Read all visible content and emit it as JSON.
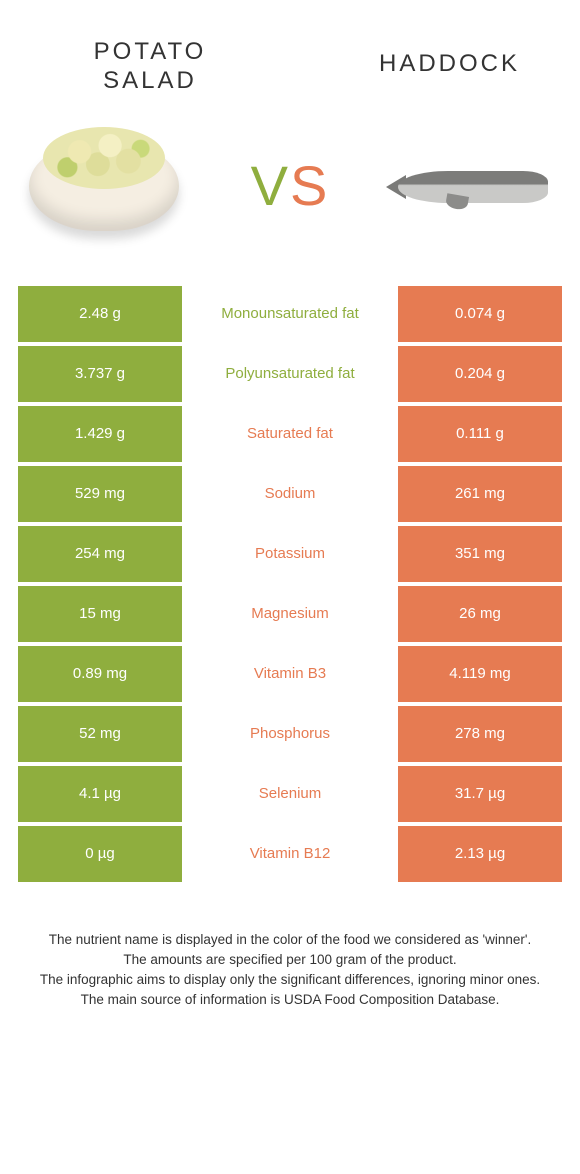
{
  "header": {
    "left_title_line1": "Potato",
    "left_title_line2": "salad",
    "right_title": "Haddock"
  },
  "vs": {
    "v": "V",
    "s": "S"
  },
  "colors": {
    "green": "#8fae3e",
    "orange": "#e67b52",
    "mid_neutral": "#888888",
    "background": "#ffffff"
  },
  "rows": [
    {
      "left": "2.48 g",
      "label": "Monounsaturated fat",
      "winner": "green",
      "right": "0.074 g"
    },
    {
      "left": "3.737 g",
      "label": "Polyunsaturated fat",
      "winner": "green",
      "right": "0.204 g"
    },
    {
      "left": "1.429 g",
      "label": "Saturated fat",
      "winner": "orange",
      "right": "0.111 g"
    },
    {
      "left": "529 mg",
      "label": "Sodium",
      "winner": "orange",
      "right": "261 mg"
    },
    {
      "left": "254 mg",
      "label": "Potassium",
      "winner": "orange",
      "right": "351 mg"
    },
    {
      "left": "15 mg",
      "label": "Magnesium",
      "winner": "orange",
      "right": "26 mg"
    },
    {
      "left": "0.89 mg",
      "label": "Vitamin B3",
      "winner": "orange",
      "right": "4.119 mg"
    },
    {
      "left": "52 mg",
      "label": "Phosphorus",
      "winner": "orange",
      "right": "278 mg"
    },
    {
      "left": "4.1 µg",
      "label": "Selenium",
      "winner": "orange",
      "right": "31.7 µg"
    },
    {
      "left": "0 µg",
      "label": "Vitamin B12",
      "winner": "orange",
      "right": "2.13 µg"
    }
  ],
  "footer": {
    "line1": "The nutrient name is displayed in the color of the food we considered as 'winner'.",
    "line2": "The amounts are specified per 100 gram of the product.",
    "line3": "The infographic aims to display only the significant differences, ignoring minor ones.",
    "line4": "The main source of information is USDA Food Composition Database."
  }
}
